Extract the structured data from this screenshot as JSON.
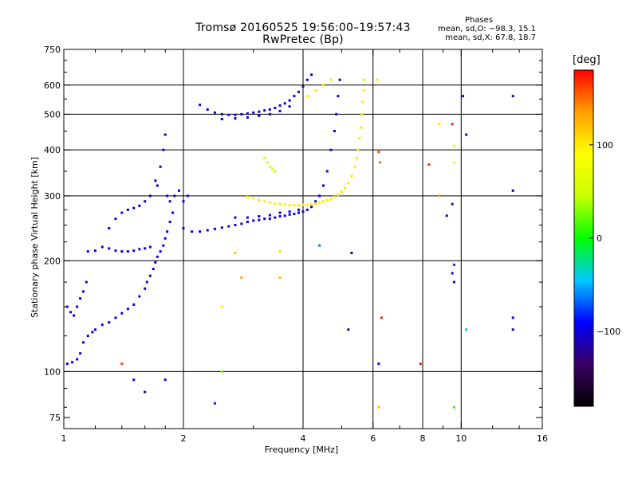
{
  "header": {
    "title_line1": "Tromsø 20160525 19:56:00–19:57:43",
    "title_line2": "RwPretec (Bp)"
  },
  "stats": {
    "heading": "Phases",
    "line_o": "mean, sd,O: −98.3, 15.1",
    "line_x": "mean, sd,X: 67.8, 18.7"
  },
  "colorbar": {
    "label": "[deg]",
    "ticks": [
      "100",
      "0",
      "−100"
    ],
    "tick_values": [
      100,
      0,
      -100
    ],
    "range": [
      -180,
      180
    ],
    "colors": [
      "#000000",
      "#3c0064",
      "#0000ff",
      "#00c8ff",
      "#00ff00",
      "#c8ff00",
      "#ffff00",
      "#ffa000",
      "#ff0000"
    ]
  },
  "chart_data": {
    "type": "scatter",
    "xlabel": "Frequency [MHz]",
    "ylabel": "Stationary phase Virtual Height [km]",
    "xscale": "log",
    "yscale": "log",
    "xlim": [
      1,
      16
    ],
    "ylim": [
      70,
      750
    ],
    "xticks": [
      1,
      2,
      4,
      6,
      8,
      10,
      16
    ],
    "yticks": [
      75,
      100,
      200,
      300,
      400,
      500,
      600,
      750
    ],
    "grid": true,
    "grid_x": [
      2,
      4,
      6,
      8,
      10
    ],
    "grid_y": [
      100,
      200,
      300,
      400,
      500,
      600
    ],
    "color_by": "phase_deg",
    "series": [
      {
        "points": [
          [
            1.02,
            105,
            -95
          ],
          [
            1.05,
            106,
            -100
          ],
          [
            1.08,
            108,
            -98
          ],
          [
            1.1,
            112,
            -105
          ],
          [
            1.12,
            120,
            -92
          ],
          [
            1.15,
            125,
            -110
          ],
          [
            1.18,
            128,
            -98
          ],
          [
            1.2,
            130,
            -100
          ],
          [
            1.25,
            134,
            -95
          ],
          [
            1.3,
            136,
            -102
          ],
          [
            1.35,
            140,
            -97
          ],
          [
            1.4,
            144,
            -100
          ],
          [
            1.45,
            148,
            -96
          ],
          [
            1.5,
            152,
            -104
          ],
          [
            1.55,
            160,
            -98
          ],
          [
            1.6,
            168,
            -100
          ],
          [
            1.62,
            175,
            -95
          ],
          [
            1.65,
            182,
            -108
          ],
          [
            1.68,
            190,
            -100
          ],
          [
            1.7,
            198,
            -97
          ],
          [
            1.72,
            205,
            -102
          ],
          [
            1.75,
            212,
            -99
          ],
          [
            1.78,
            220,
            -101
          ],
          [
            1.8,
            230,
            -96
          ],
          [
            1.82,
            240,
            -110
          ],
          [
            1.85,
            255,
            -98
          ],
          [
            1.88,
            270,
            -94
          ],
          [
            1.02,
            150,
            -100
          ],
          [
            1.04,
            145,
            -98
          ],
          [
            1.06,
            142,
            -103
          ],
          [
            1.08,
            150,
            -97
          ],
          [
            1.1,
            158,
            -100
          ],
          [
            1.12,
            165,
            -105
          ],
          [
            1.14,
            175,
            -99
          ],
          [
            1.15,
            212,
            -100
          ],
          [
            1.2,
            213,
            -98
          ],
          [
            1.25,
            218,
            -102
          ],
          [
            1.3,
            216,
            -97
          ],
          [
            1.35,
            213,
            -101
          ],
          [
            1.4,
            212,
            -99
          ],
          [
            1.45,
            212,
            -100
          ],
          [
            1.5,
            213,
            -98
          ],
          [
            1.55,
            215,
            -96
          ],
          [
            1.6,
            216,
            -100
          ],
          [
            1.65,
            218,
            -103
          ],
          [
            1.3,
            245,
            -100
          ],
          [
            1.35,
            260,
            -99
          ],
          [
            1.4,
            270,
            -101
          ],
          [
            1.45,
            275,
            -97
          ],
          [
            1.5,
            278,
            -100
          ],
          [
            1.55,
            282,
            -98
          ],
          [
            1.6,
            290,
            -102
          ],
          [
            1.65,
            300,
            -100
          ],
          [
            1.7,
            330,
            -99
          ],
          [
            1.75,
            360,
            -101
          ],
          [
            1.78,
            400,
            -97
          ],
          [
            1.8,
            440,
            -95
          ],
          [
            1.72,
            320,
            -110
          ],
          [
            1.82,
            300,
            -100
          ],
          [
            1.85,
            290,
            -103
          ],
          [
            1.9,
            300,
            -98
          ],
          [
            1.95,
            310,
            -100
          ],
          [
            2.0,
            290,
            -97
          ],
          [
            2.05,
            300,
            -101
          ],
          [
            2.0,
            245,
            -100
          ],
          [
            2.1,
            240,
            -98
          ],
          [
            2.2,
            240,
            -102
          ],
          [
            2.3,
            242,
            -100
          ],
          [
            2.4,
            244,
            -97
          ],
          [
            2.5,
            246,
            -101
          ],
          [
            2.6,
            248,
            -100
          ],
          [
            2.7,
            250,
            -98
          ],
          [
            2.8,
            252,
            -103
          ],
          [
            2.9,
            255,
            -100
          ],
          [
            3.0,
            257,
            -97
          ],
          [
            3.1,
            258,
            -100
          ],
          [
            3.2,
            260,
            -102
          ],
          [
            3.3,
            260,
            -99
          ],
          [
            3.4,
            262,
            -100
          ],
          [
            3.5,
            264,
            -98
          ],
          [
            3.6,
            265,
            -101
          ],
          [
            3.7,
            267,
            -100
          ],
          [
            3.8,
            268,
            -97
          ],
          [
            3.9,
            270,
            -100
          ],
          [
            4.0,
            272,
            -102
          ],
          [
            4.1,
            275,
            -99
          ],
          [
            4.2,
            280,
            -100
          ],
          [
            4.3,
            290,
            -98
          ],
          [
            4.4,
            300,
            -101
          ],
          [
            4.5,
            320,
            -100
          ],
          [
            4.6,
            350,
            -97
          ],
          [
            4.7,
            400,
            -100
          ],
          [
            4.8,
            450,
            -102
          ],
          [
            4.85,
            500,
            -99
          ],
          [
            4.9,
            560,
            -100
          ],
          [
            4.95,
            620,
            -98
          ],
          [
            2.7,
            262,
            -100
          ],
          [
            2.9,
            262,
            -98
          ],
          [
            3.1,
            264,
            -102
          ],
          [
            3.3,
            266,
            -100
          ],
          [
            3.5,
            270,
            -97
          ],
          [
            3.7,
            272,
            -100
          ],
          [
            3.9,
            275,
            -101
          ],
          [
            2.2,
            530,
            -100
          ],
          [
            2.3,
            515,
            -98
          ],
          [
            2.4,
            505,
            -102
          ],
          [
            2.5,
            500,
            -100
          ],
          [
            2.6,
            498,
            -97
          ],
          [
            2.7,
            498,
            -100
          ],
          [
            2.8,
            500,
            -101
          ],
          [
            2.9,
            502,
            -98
          ],
          [
            3.0,
            505,
            -100
          ],
          [
            3.1,
            508,
            -102
          ],
          [
            3.2,
            512,
            -99
          ],
          [
            3.3,
            515,
            -100
          ],
          [
            3.4,
            520,
            -98
          ],
          [
            3.5,
            528,
            -101
          ],
          [
            3.6,
            535,
            -100
          ],
          [
            3.7,
            545,
            -97
          ],
          [
            3.8,
            560,
            -100
          ],
          [
            3.9,
            575,
            -102
          ],
          [
            4.0,
            595,
            -99
          ],
          [
            4.1,
            620,
            -100
          ],
          [
            4.2,
            640,
            -98
          ],
          [
            2.5,
            485,
            -100
          ],
          [
            2.7,
            487,
            -98
          ],
          [
            2.9,
            490,
            -101
          ],
          [
            3.1,
            495,
            -100
          ],
          [
            3.3,
            500,
            -97
          ],
          [
            3.5,
            510,
            -100
          ],
          [
            3.7,
            525,
            -102
          ],
          [
            2.9,
            298,
            100
          ],
          [
            3.0,
            296,
            95
          ],
          [
            3.1,
            292,
            102
          ],
          [
            3.2,
            290,
            98
          ],
          [
            3.3,
            288,
            100
          ],
          [
            3.4,
            286,
            97
          ],
          [
            3.5,
            285,
            101
          ],
          [
            3.6,
            284,
            100
          ],
          [
            3.7,
            283,
            99
          ],
          [
            3.8,
            283,
            102
          ],
          [
            3.9,
            283,
            100
          ],
          [
            4.0,
            284,
            98
          ],
          [
            4.1,
            284,
            101
          ],
          [
            4.2,
            285,
            100
          ],
          [
            4.3,
            286,
            103
          ],
          [
            4.4,
            288,
            97
          ],
          [
            4.5,
            290,
            100
          ],
          [
            4.6,
            292,
            102
          ],
          [
            4.7,
            294,
            99
          ],
          [
            4.8,
            298,
            100
          ],
          [
            4.9,
            302,
            97
          ],
          [
            5.0,
            308,
            101
          ],
          [
            5.1,
            315,
            100
          ],
          [
            5.2,
            325,
            98
          ],
          [
            5.3,
            340,
            100
          ],
          [
            5.4,
            360,
            102
          ],
          [
            5.45,
            380,
            99
          ],
          [
            5.5,
            400,
            100
          ],
          [
            5.55,
            430,
            98
          ],
          [
            5.6,
            460,
            101
          ],
          [
            5.62,
            500,
            100
          ],
          [
            5.65,
            540,
            97
          ],
          [
            5.68,
            580,
            100
          ],
          [
            5.7,
            620,
            102
          ],
          [
            3.2,
            380,
            60
          ],
          [
            3.25,
            370,
            65
          ],
          [
            3.3,
            360,
            62
          ],
          [
            3.35,
            355,
            68
          ],
          [
            3.4,
            350,
            60
          ],
          [
            4.1,
            560,
            100
          ],
          [
            4.3,
            580,
            98
          ],
          [
            4.5,
            600,
            102
          ],
          [
            4.7,
            620,
            100
          ],
          [
            6.15,
            620,
            100
          ],
          [
            6.2,
            395,
            160
          ],
          [
            6.25,
            370,
            150
          ],
          [
            6.2,
            105,
            -100
          ],
          [
            6.3,
            140,
            170
          ],
          [
            7.9,
            105,
            170
          ],
          [
            8.3,
            365,
            170
          ],
          [
            8.8,
            470,
            100
          ],
          [
            9.5,
            470,
            170
          ],
          [
            9.6,
            410,
            70
          ],
          [
            9.5,
            285,
            -110
          ],
          [
            9.6,
            195,
            -80
          ],
          [
            9.5,
            185,
            -100
          ],
          [
            9.6,
            175,
            -110
          ],
          [
            9.6,
            80,
            10
          ],
          [
            10.1,
            560,
            -110
          ],
          [
            10.3,
            440,
            -100
          ],
          [
            10.3,
            130,
            -40
          ],
          [
            13.5,
            560,
            -110
          ],
          [
            13.5,
            310,
            -120
          ],
          [
            13.5,
            140,
            -100
          ],
          [
            13.5,
            130,
            -110
          ],
          [
            6.2,
            80,
            120
          ],
          [
            2.5,
            100,
            30
          ],
          [
            2.5,
            150,
            90
          ],
          [
            2.8,
            180,
            130
          ],
          [
            3.5,
            212,
            110
          ],
          [
            4.4,
            220,
            -60
          ],
          [
            5.3,
            210,
            -110
          ],
          [
            5.2,
            130,
            -110
          ],
          [
            2.7,
            210,
            120
          ],
          [
            1.4,
            105,
            160
          ],
          [
            1.5,
            95,
            -100
          ],
          [
            1.6,
            88,
            -110
          ],
          [
            1.8,
            95,
            -100
          ],
          [
            2.4,
            82,
            -80
          ],
          [
            3.5,
            180,
            120
          ],
          [
            8.8,
            300,
            140
          ],
          [
            9.2,
            265,
            -120
          ],
          [
            9.6,
            370,
            60
          ]
        ]
      }
    ]
  }
}
